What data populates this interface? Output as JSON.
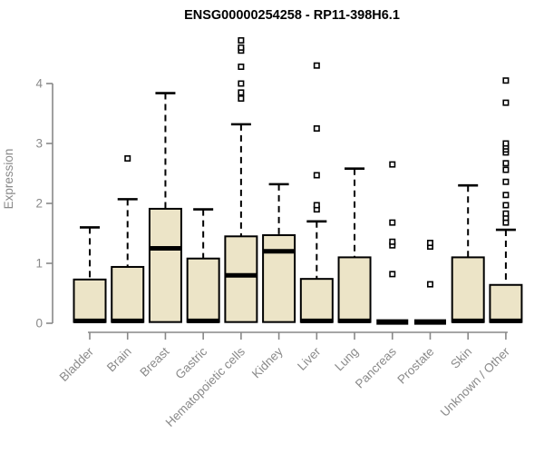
{
  "chart_data": {
    "type": "boxplot",
    "title": "ENSG00000254258 - RP11-398H6.1",
    "ylabel": "Expression",
    "xlabel": "",
    "ylim": [
      0,
      4.8
    ],
    "yticks": [
      0,
      1,
      2,
      3,
      4
    ],
    "grid": false,
    "legend": "none",
    "box_fill": "#ece4c7",
    "box_stroke": "#000000",
    "axis_color": "#888888",
    "label_color": "#8a8a8a",
    "categories": [
      "Bladder",
      "Brain",
      "Breast",
      "Gastric",
      "Hematopoietic cells",
      "Kidney",
      "Liver",
      "Lung",
      "Pancreas",
      "Prostate",
      "Skin",
      "Unknown / Other"
    ],
    "series": [
      {
        "category": "Bladder",
        "low": 0.02,
        "q1": 0.02,
        "median": 0.04,
        "q3": 0.73,
        "high": 1.6,
        "outliers": []
      },
      {
        "category": "Brain",
        "low": 0.02,
        "q1": 0.02,
        "median": 0.04,
        "q3": 0.94,
        "high": 2.07,
        "outliers": [
          2.75
        ]
      },
      {
        "category": "Breast",
        "low": 0.02,
        "q1": 0.02,
        "median": 1.25,
        "q3": 1.91,
        "high": 3.84,
        "outliers": []
      },
      {
        "category": "Gastric",
        "low": 0.02,
        "q1": 0.02,
        "median": 0.04,
        "q3": 1.08,
        "high": 1.9,
        "outliers": []
      },
      {
        "category": "Hematopoietic cells",
        "low": 0.02,
        "q1": 0.02,
        "median": 0.8,
        "q3": 1.45,
        "high": 3.32,
        "outliers": [
          3.75,
          3.85,
          4.0,
          4.28,
          4.55,
          4.6,
          4.72
        ]
      },
      {
        "category": "Kidney",
        "low": 0.02,
        "q1": 0.02,
        "median": 1.2,
        "q3": 1.47,
        "high": 2.32,
        "outliers": []
      },
      {
        "category": "Liver",
        "low": 0.02,
        "q1": 0.02,
        "median": 0.04,
        "q3": 0.74,
        "high": 1.7,
        "outliers": [
          1.9,
          1.97,
          2.47,
          3.25,
          4.3
        ]
      },
      {
        "category": "Lung",
        "low": 0.02,
        "q1": 0.02,
        "median": 0.04,
        "q3": 1.1,
        "high": 2.58,
        "outliers": []
      },
      {
        "category": "Pancreas",
        "low": 0.02,
        "q1": 0.02,
        "median": 0.02,
        "q3": 0.02,
        "high": 0.02,
        "outliers": [
          0.82,
          1.3,
          1.36,
          1.68,
          2.65
        ]
      },
      {
        "category": "Prostate",
        "low": 0.02,
        "q1": 0.02,
        "median": 0.02,
        "q3": 0.02,
        "high": 0.02,
        "outliers": [
          0.65,
          1.28,
          1.34
        ]
      },
      {
        "category": "Skin",
        "low": 0.02,
        "q1": 0.02,
        "median": 0.04,
        "q3": 1.1,
        "high": 2.3,
        "outliers": []
      },
      {
        "category": "Unknown / Other",
        "low": 0.02,
        "q1": 0.02,
        "median": 0.04,
        "q3": 0.64,
        "high": 1.56,
        "outliers": [
          1.68,
          1.76,
          1.83,
          1.97,
          2.14,
          2.36,
          2.56,
          2.67,
          2.85,
          2.9,
          2.95,
          3.0,
          3.68,
          4.05
        ]
      }
    ]
  }
}
